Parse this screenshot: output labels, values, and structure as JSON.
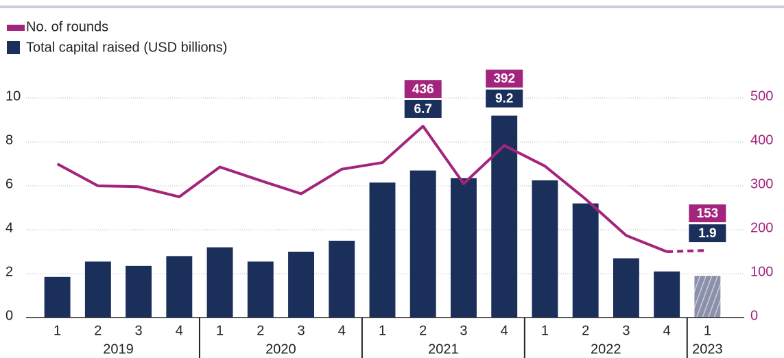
{
  "chart_data": {
    "type": "bar_line",
    "categories": [
      "1",
      "2",
      "3",
      "4",
      "1",
      "2",
      "3",
      "4",
      "1",
      "2",
      "3",
      "4",
      "1",
      "2",
      "3",
      "4",
      "1"
    ],
    "years": [
      "2019",
      "2019",
      "2019",
      "2019",
      "2020",
      "2020",
      "2020",
      "2020",
      "2021",
      "2021",
      "2021",
      "2021",
      "2022",
      "2022",
      "2022",
      "2022",
      "2023"
    ],
    "series": [
      {
        "name": "No. of rounds",
        "color": "#a3247c",
        "axis": "y2",
        "values": [
          350,
          300,
          298,
          275,
          343,
          312,
          282,
          338,
          353,
          436,
          305,
          392,
          345,
          270,
          187,
          150,
          153
        ],
        "value_labels": [
          null,
          null,
          null,
          null,
          null,
          null,
          null,
          null,
          null,
          "436",
          null,
          "392",
          null,
          null,
          null,
          null,
          "153"
        ]
      },
      {
        "name": "Total capital raised (USD billions)",
        "color": "#1b2f5b",
        "values": [
          1.85,
          2.55,
          2.35,
          2.8,
          3.2,
          2.55,
          3.0,
          3.5,
          6.15,
          6.7,
          6.35,
          9.2,
          6.25,
          5.2,
          2.7,
          2.1,
          1.9
        ],
        "value_labels": [
          null,
          null,
          null,
          null,
          null,
          null,
          null,
          null,
          null,
          "6.7",
          null,
          "9.2",
          null,
          null,
          null,
          null,
          "1.9"
        ]
      }
    ],
    "ylim": [
      0,
      10
    ],
    "yticks": [
      0,
      2,
      4,
      6,
      8,
      10
    ],
    "y2lim": [
      0,
      500
    ],
    "y2ticks": [
      0,
      100,
      200,
      300,
      400,
      500
    ],
    "grid": true
  }
}
